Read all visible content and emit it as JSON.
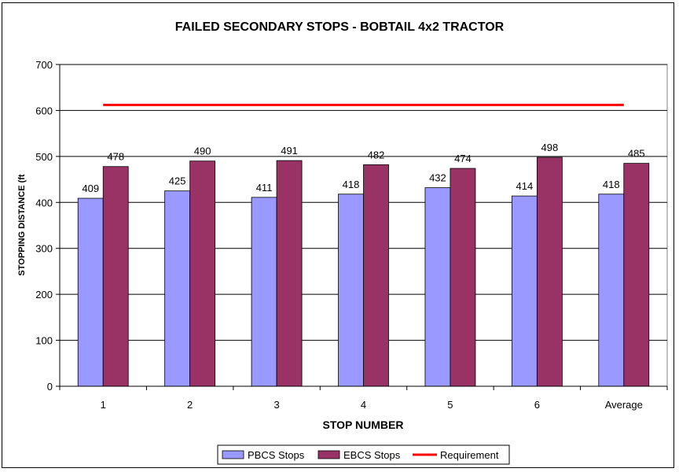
{
  "chart_data": {
    "type": "bar",
    "title": "FAILED SECONDARY STOPS - BOBTAIL 4x2 TRACTOR",
    "xlabel": "STOP NUMBER",
    "ylabel": "STOPPING DISTANCE (ft",
    "categories": [
      "1",
      "2",
      "3",
      "4",
      "5",
      "6",
      "Average"
    ],
    "ylim": [
      0,
      700
    ],
    "yticks": [
      0,
      100,
      200,
      300,
      400,
      500,
      600,
      700
    ],
    "grid": true,
    "legend_position": "bottom",
    "series": [
      {
        "name": "PBCS Stops",
        "values": [
          409,
          425,
          411,
          418,
          432,
          414,
          418
        ],
        "color": "#9999ff"
      },
      {
        "name": "EBCS Stops",
        "values": [
          478,
          490,
          491,
          482,
          474,
          498,
          485
        ],
        "color": "#993366"
      }
    ],
    "requirement": {
      "name": "Requirement",
      "value": 612,
      "color": "#ff0000"
    }
  }
}
